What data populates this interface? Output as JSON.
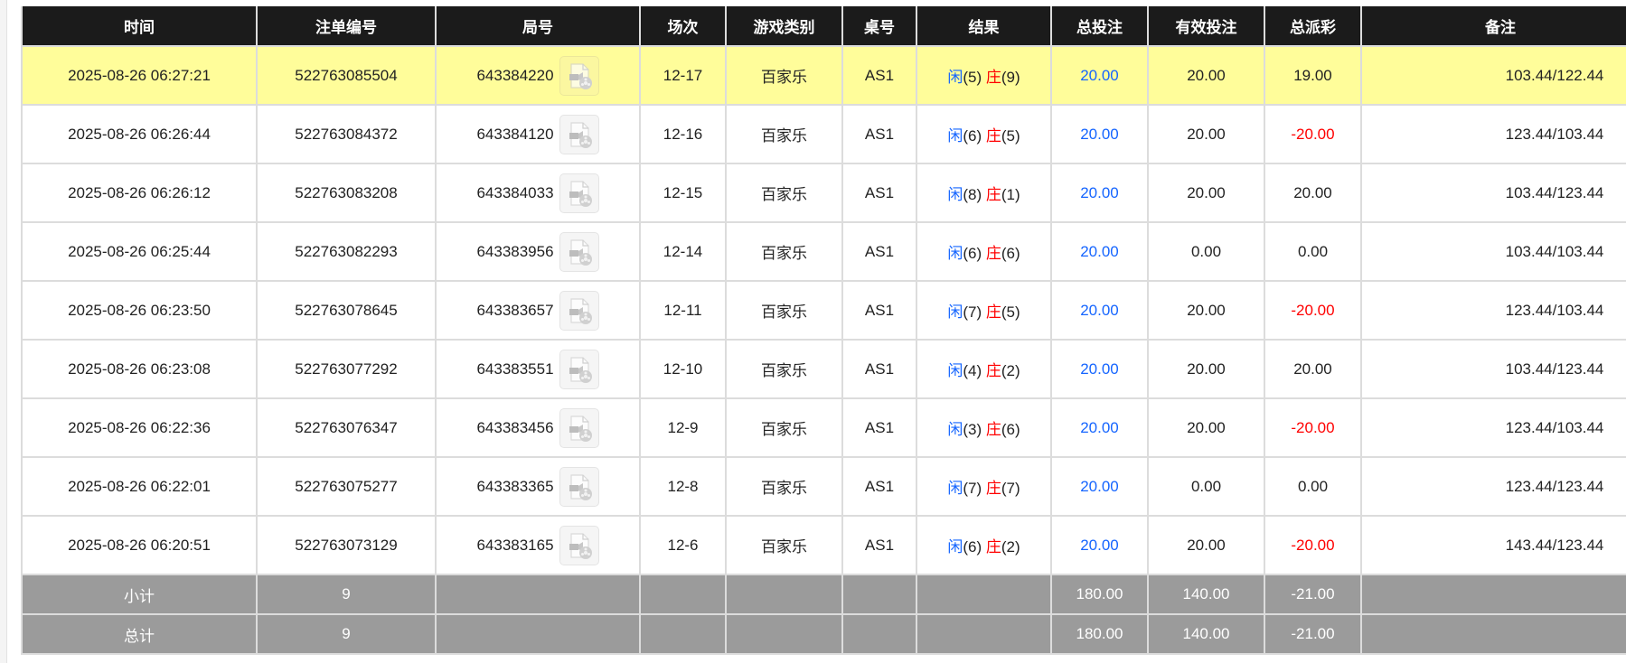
{
  "columns": [
    "时间",
    "注单编号",
    "局号",
    "场次",
    "游戏类别",
    "桌号",
    "结果",
    "总投注",
    "有效投注",
    "总派彩",
    "备注"
  ],
  "result_labels": {
    "player": "闲",
    "banker": "庄"
  },
  "colors": {
    "header_bg": "#1b1b1b",
    "highlight_row": "#fffd9a",
    "summary_bg": "#9b9b9b",
    "player": "#1565ff",
    "banker": "#ff0000",
    "negative": "#ff0000",
    "total_bet": "#1565ff"
  },
  "rows": [
    {
      "time": "2025-08-26 06:27:21",
      "bet_id": "522763085504",
      "round": "643384220",
      "session": "12-17",
      "game": "百家乐",
      "table": "AS1",
      "player": "(5)",
      "banker": "(9)",
      "total_bet": "20.00",
      "valid_bet": "20.00",
      "payout": "19.00",
      "payout_negative": false,
      "remark": "103.44/122.44",
      "highlight": true
    },
    {
      "time": "2025-08-26 06:26:44",
      "bet_id": "522763084372",
      "round": "643384120",
      "session": "12-16",
      "game": "百家乐",
      "table": "AS1",
      "player": "(6)",
      "banker": "(5)",
      "total_bet": "20.00",
      "valid_bet": "20.00",
      "payout": "-20.00",
      "payout_negative": true,
      "remark": "123.44/103.44"
    },
    {
      "time": "2025-08-26 06:26:12",
      "bet_id": "522763083208",
      "round": "643384033",
      "session": "12-15",
      "game": "百家乐",
      "table": "AS1",
      "player": "(8)",
      "banker": "(1)",
      "total_bet": "20.00",
      "valid_bet": "20.00",
      "payout": "20.00",
      "payout_negative": false,
      "remark": "103.44/123.44"
    },
    {
      "time": "2025-08-26 06:25:44",
      "bet_id": "522763082293",
      "round": "643383956",
      "session": "12-14",
      "game": "百家乐",
      "table": "AS1",
      "player": "(6)",
      "banker": "(6)",
      "total_bet": "20.00",
      "valid_bet": "0.00",
      "payout": "0.00",
      "payout_negative": false,
      "remark": "103.44/103.44"
    },
    {
      "time": "2025-08-26 06:23:50",
      "bet_id": "522763078645",
      "round": "643383657",
      "session": "12-11",
      "game": "百家乐",
      "table": "AS1",
      "player": "(7)",
      "banker": "(5)",
      "total_bet": "20.00",
      "valid_bet": "20.00",
      "payout": "-20.00",
      "payout_negative": true,
      "remark": "123.44/103.44"
    },
    {
      "time": "2025-08-26 06:23:08",
      "bet_id": "522763077292",
      "round": "643383551",
      "session": "12-10",
      "game": "百家乐",
      "table": "AS1",
      "player": "(4)",
      "banker": "(2)",
      "total_bet": "20.00",
      "valid_bet": "20.00",
      "payout": "20.00",
      "payout_negative": false,
      "remark": "103.44/123.44"
    },
    {
      "time": "2025-08-26 06:22:36",
      "bet_id": "522763076347",
      "round": "643383456",
      "session": "12-9",
      "game": "百家乐",
      "table": "AS1",
      "player": "(3)",
      "banker": "(6)",
      "total_bet": "20.00",
      "valid_bet": "20.00",
      "payout": "-20.00",
      "payout_negative": true,
      "remark": "123.44/103.44"
    },
    {
      "time": "2025-08-26 06:22:01",
      "bet_id": "522763075277",
      "round": "643383365",
      "session": "12-8",
      "game": "百家乐",
      "table": "AS1",
      "player": "(7)",
      "banker": "(7)",
      "total_bet": "20.00",
      "valid_bet": "0.00",
      "payout": "0.00",
      "payout_negative": false,
      "remark": "123.44/123.44"
    },
    {
      "time": "2025-08-26 06:20:51",
      "bet_id": "522763073129",
      "round": "643383165",
      "session": "12-6",
      "game": "百家乐",
      "table": "AS1",
      "player": "(6)",
      "banker": "(2)",
      "total_bet": "20.00",
      "valid_bet": "20.00",
      "payout": "-20.00",
      "payout_negative": true,
      "remark": "143.44/123.44"
    }
  ],
  "summary": [
    {
      "label": "小计",
      "count": "9",
      "total_bet": "180.00",
      "valid_bet": "140.00",
      "payout": "-21.00"
    },
    {
      "label": "总计",
      "count": "9",
      "total_bet": "180.00",
      "valid_bet": "140.00",
      "payout": "-21.00"
    }
  ]
}
